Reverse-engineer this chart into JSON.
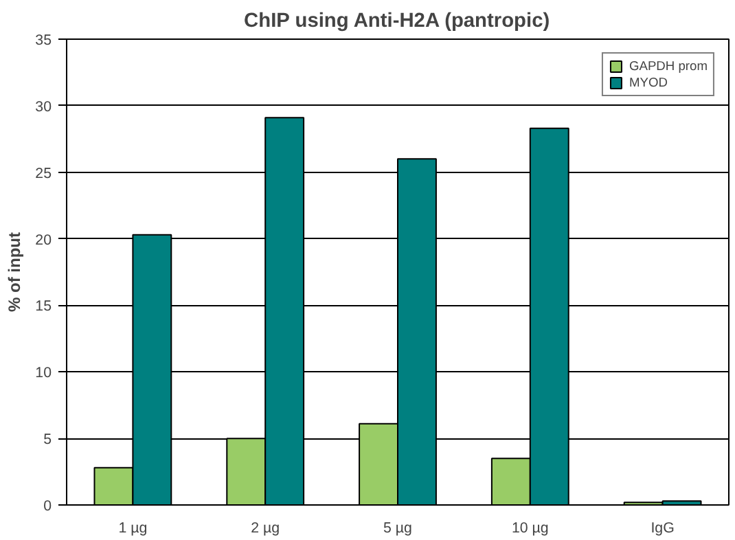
{
  "chart_data": {
    "type": "bar",
    "title": "ChIP using Anti-H2A (pantropic)",
    "ylabel": "% of input",
    "categories": [
      "1 µg",
      "2 µg",
      "5 µg",
      "10 µg",
      "IgG"
    ],
    "series": [
      {
        "name": "GAPDH prom",
        "color": "#99cc66",
        "values": [
          2.8,
          5.0,
          6.1,
          3.5,
          0.2
        ]
      },
      {
        "name": "MYOD",
        "color": "#008080",
        "values": [
          20.3,
          29.1,
          26.0,
          28.3,
          0.3
        ]
      }
    ],
    "ylim": [
      0,
      35
    ],
    "yticks": [
      0,
      5,
      10,
      15,
      20,
      25,
      30,
      35
    ],
    "grid": "y",
    "legend": "top right"
  }
}
